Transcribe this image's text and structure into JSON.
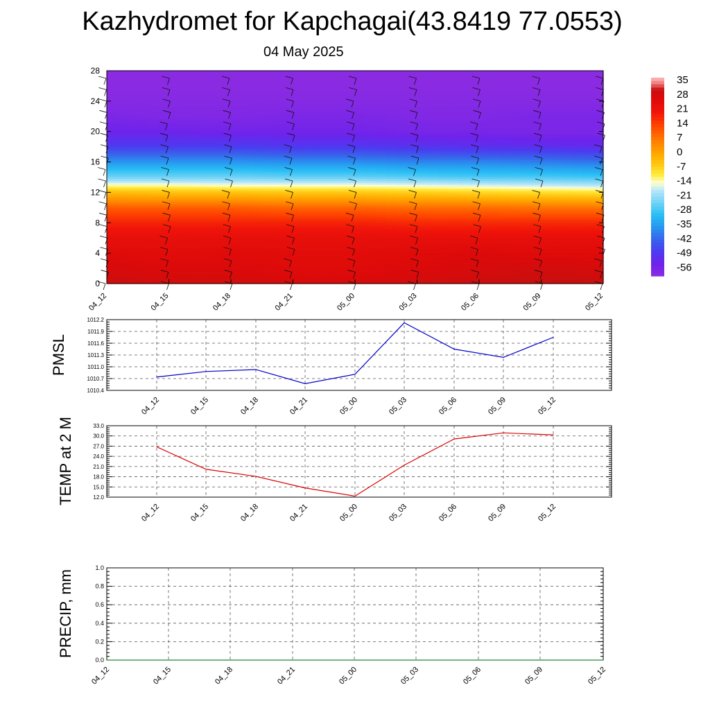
{
  "title": "Kazhydromet for Kapchagai(43.8419 77.0553)",
  "subtitle": "04 May 2025",
  "chart_data": [
    {
      "type": "heatmap",
      "id": "cross_section",
      "x_ticks": [
        "04_12",
        "04_15",
        "04_18",
        "04_21",
        "05_00",
        "05_03",
        "05_06",
        "05_09",
        "05_12"
      ],
      "y_ticks": [
        0,
        4,
        8,
        12,
        16,
        20,
        24,
        28
      ],
      "ylim": [
        0,
        28
      ],
      "colorbar_labels": [
        "35",
        "28",
        "21",
        "14",
        "7",
        "0",
        "-7",
        "-14",
        "-21",
        "-28",
        "-35",
        "-42",
        "-49",
        "-56"
      ],
      "colorbar_range": [
        -60,
        38
      ],
      "temperature_by_level": [
        {
          "level": 0,
          "values": [
            31,
            30,
            30,
            29,
            29,
            30,
            31,
            32,
            32
          ]
        },
        {
          "level": 2,
          "values": [
            29,
            28,
            28,
            27,
            27,
            28,
            29,
            30,
            29
          ]
        },
        {
          "level": 4,
          "values": [
            27,
            26,
            27,
            26,
            26,
            27,
            28,
            27,
            27
          ]
        },
        {
          "level": 6,
          "values": [
            24,
            24,
            24,
            24,
            24,
            24,
            24,
            24,
            24
          ]
        },
        {
          "level": 8,
          "values": [
            19,
            19,
            19,
            19,
            19,
            18,
            18,
            18,
            18
          ]
        },
        {
          "level": 10,
          "values": [
            11,
            11,
            11,
            10,
            10,
            9,
            9,
            8,
            8
          ]
        },
        {
          "level": 12,
          "values": [
            -3,
            -4,
            -4,
            -5,
            -5,
            -6,
            -7,
            -8,
            -9
          ]
        },
        {
          "level": 13,
          "values": [
            -14,
            -14,
            -15,
            -15,
            -15,
            -16,
            -17,
            -18,
            -19
          ]
        },
        {
          "level": 14,
          "values": [
            -24,
            -24,
            -24,
            -25,
            -25,
            -26,
            -27,
            -27,
            -28
          ]
        },
        {
          "level": 16,
          "values": [
            -36,
            -36,
            -36,
            -37,
            -37,
            -38,
            -38,
            -39,
            -40
          ]
        },
        {
          "level": 18,
          "values": [
            -48,
            -48,
            -48,
            -49,
            -49,
            -50,
            -51,
            -51,
            -52
          ]
        },
        {
          "level": 20,
          "values": [
            -54,
            -54,
            -55,
            -55,
            -55,
            -56,
            -56,
            -57,
            -57
          ]
        },
        {
          "level": 22,
          "values": [
            -57,
            -58,
            -58,
            -57,
            -57,
            -58,
            -58,
            -57,
            -57
          ]
        },
        {
          "level": 24,
          "values": [
            -59,
            -59,
            -59,
            -59,
            -59,
            -59,
            -59,
            -59,
            -59
          ]
        },
        {
          "level": 26,
          "values": [
            -60,
            -60,
            -60,
            -60,
            -60,
            -60,
            -60,
            -60,
            -60
          ]
        },
        {
          "level": 28,
          "values": [
            -60,
            -60,
            -60,
            -60,
            -60,
            -60,
            -60,
            -60,
            -60
          ]
        }
      ],
      "wind_barb_levels": [
        0,
        1.5,
        3,
        4.5,
        6,
        7.5,
        9,
        10.5,
        12,
        13.5,
        15,
        16.5,
        18,
        19.5,
        21,
        22.5,
        24,
        25.5,
        27
      ]
    },
    {
      "type": "line",
      "id": "pmsl",
      "ylabel": "PMSL",
      "x": [
        "04_12",
        "04_15",
        "04_18",
        "04_21",
        "05_00",
        "05_03",
        "05_06",
        "05_09",
        "05_12"
      ],
      "series": [
        {
          "values": [
            1010.74,
            1010.88,
            1010.93,
            1010.57,
            1010.81,
            1012.12,
            1011.45,
            1011.24,
            1011.75
          ],
          "color": "#0000cc"
        }
      ],
      "y_ticks": [
        "1010.4",
        "1010.7",
        "1011.0",
        "1011.3",
        "1011.6",
        "1011.9",
        "1012.2"
      ],
      "ylim": [
        1010.4,
        1012.2
      ],
      "grid": true
    },
    {
      "type": "line",
      "id": "temp2m",
      "ylabel": "TEMP at 2 M",
      "x": [
        "04_12",
        "04_15",
        "04_18",
        "04_21",
        "05_00",
        "05_03",
        "05_06",
        "05_09",
        "05_12"
      ],
      "series": [
        {
          "values": [
            26.8,
            20.2,
            18.1,
            14.7,
            12.3,
            21.4,
            29.1,
            30.9,
            30.3
          ],
          "color": "#dd0000"
        }
      ],
      "y_ticks": [
        "12.0",
        "15.0",
        "18.0",
        "21.0",
        "24.0",
        "27.0",
        "30.0",
        "33.0"
      ],
      "ylim": [
        12,
        33
      ],
      "grid": true
    },
    {
      "type": "line",
      "id": "precip",
      "ylabel": "PRECIP, mm",
      "x_ticks": [
        "04_12",
        "04_15",
        "04_18",
        "04_21",
        "05_00",
        "05_03",
        "05_06",
        "05_09",
        "05_12"
      ],
      "series": [
        {
          "values": [
            0,
            0,
            0,
            0,
            0,
            0,
            0,
            0,
            0
          ],
          "color": "#228833"
        }
      ],
      "y_ticks": [
        "0.0",
        "0.2",
        "0.4",
        "0.6",
        "0.8",
        "1.0"
      ],
      "ylim": [
        0,
        1
      ],
      "grid": true
    }
  ]
}
